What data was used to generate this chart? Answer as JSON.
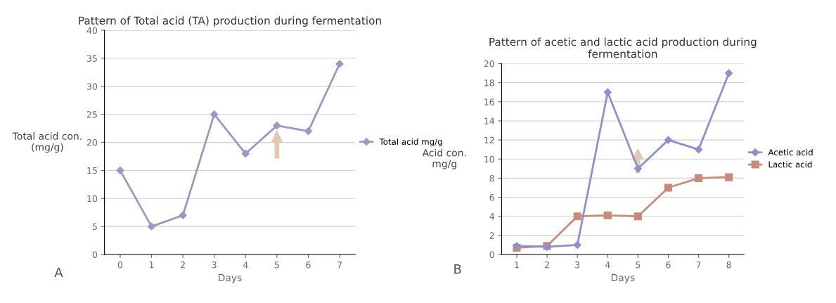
{
  "chart_data": [
    {
      "type": "line",
      "title": "Pattern of Total acid (TA) production during fermentation",
      "xlabel": "Days",
      "ylabel": "Total acid con.\n(mg/g)",
      "categories": [
        "0",
        "1",
        "2",
        "3",
        "4",
        "5",
        "6",
        "7"
      ],
      "series": [
        {
          "name": "Total acid mg/g",
          "color": "#9b98c6",
          "values": [
            15,
            5,
            7,
            25,
            18,
            23,
            22,
            34
          ]
        }
      ],
      "ylim": [
        0,
        40
      ],
      "yticks": [
        0,
        5,
        10,
        15,
        20,
        25,
        30,
        35,
        40
      ],
      "grid": "y",
      "legend": "right",
      "marker": "diamond",
      "line_style": "solid",
      "annotations": [
        "A"
      ]
    },
    {
      "type": "line",
      "title": "Pattern of acetic and lactic acid production during\nfermentation",
      "xlabel": "Days",
      "ylabel": "Acid con.\nmg/g",
      "categories": [
        "1",
        "2",
        "3",
        "4",
        "5",
        "6",
        "7",
        "8"
      ],
      "series": [
        {
          "name": "Acetic acid",
          "color": "#8f8fd0",
          "values": [
            0.9,
            0.8,
            1,
            17,
            9,
            12,
            11,
            19
          ],
          "marker": "diamond"
        },
        {
          "name": "Lactic acid",
          "color": "#c98a78",
          "values": [
            0.7,
            0.9,
            4,
            4.1,
            4,
            7,
            8,
            8.1
          ],
          "marker": "square"
        }
      ],
      "ylim": [
        0,
        20
      ],
      "yticks": [
        0,
        2,
        4,
        6,
        8,
        10,
        12,
        14,
        16,
        18,
        20
      ],
      "grid": "y",
      "legend": "right",
      "marker": "diamond",
      "line_style": "solid",
      "annotations": [
        "B"
      ]
    }
  ]
}
